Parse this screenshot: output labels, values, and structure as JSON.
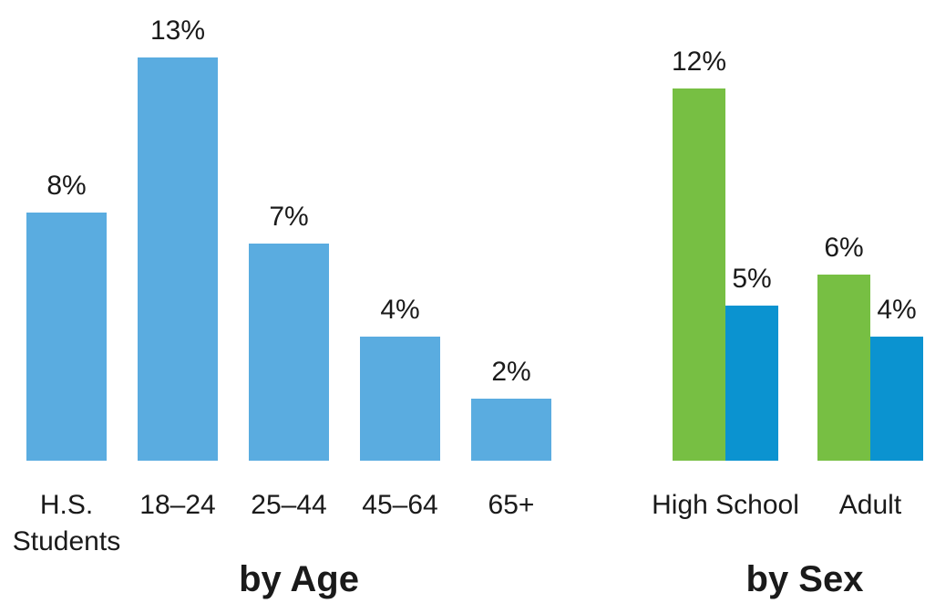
{
  "chart_data": [
    {
      "type": "bar",
      "subtitle": "by Age",
      "categories": [
        [
          "H.S.",
          "Students"
        ],
        [
          "18–24"
        ],
        [
          "25–44"
        ],
        [
          "45–64"
        ],
        [
          "65+"
        ]
      ],
      "values": [
        8,
        13,
        7,
        4,
        2
      ],
      "value_labels": [
        "8%",
        "13%",
        "7%",
        "4%",
        "2%"
      ],
      "ylim": [
        0,
        13
      ],
      "unit": "%",
      "color": "#5aace0",
      "grid": false
    },
    {
      "type": "bar",
      "subtitle": "by Sex",
      "categories": [
        "High School",
        "Adult"
      ],
      "series": [
        {
          "values": [
            12,
            6
          ],
          "value_labels": [
            "12%",
            "6%"
          ],
          "color": "#77bf43"
        },
        {
          "values": [
            5,
            4
          ],
          "value_labels": [
            "5%",
            "4%"
          ],
          "color": "#0b93d0"
        }
      ],
      "ylim": [
        0,
        13
      ],
      "unit": "%",
      "grid": false
    }
  ]
}
